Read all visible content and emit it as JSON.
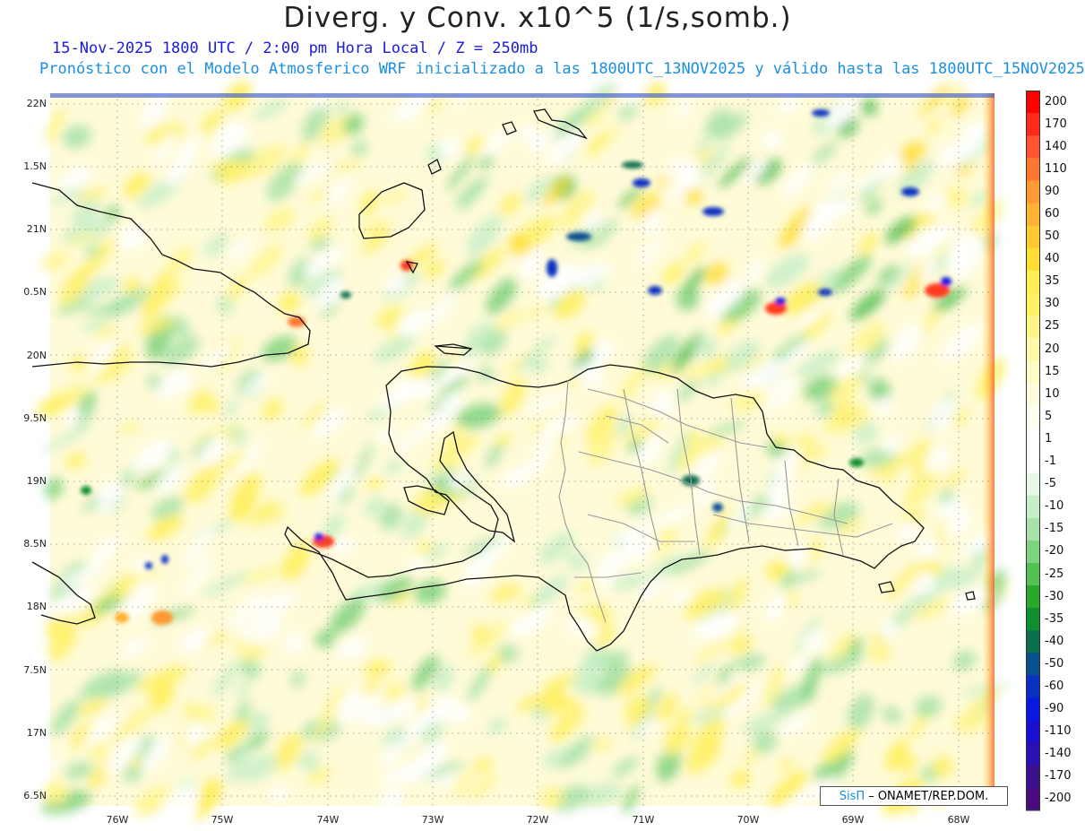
{
  "title": "Diverg. y Conv. x10^5 (1/s,somb.)",
  "subtitle1": "15-Nov-2025  1800 UTC / 2:00 pm Hora Local / Z = 250mb",
  "subtitle2": "Pronóstico con el Modelo Atmosferico WRF inicializado a las 1800UTC_13NOV2025 y válido hasta las  1800UTC_15NOV2025",
  "credit": {
    "brand": "SisΠ",
    "text": "– ONAMET/REP.DOM."
  },
  "lat_labels": [
    "22N",
    "1.5N",
    "21N",
    "0.5N",
    "20N",
    "9.5N",
    "19N",
    "8.5N",
    "18N",
    "7.5N",
    "17N",
    "6.5N"
  ],
  "lon_labels": [
    "76W",
    "75W",
    "74W",
    "73W",
    "72W",
    "71W",
    "70W",
    "69W",
    "68W"
  ],
  "colorbar": {
    "labels": [
      "200",
      "170",
      "140",
      "110",
      "90",
      "60",
      "50",
      "40",
      "35",
      "30",
      "25",
      "20",
      "15",
      "10",
      "5",
      "1",
      "-1",
      "-5",
      "-10",
      "-15",
      "-20",
      "-25",
      "-30",
      "-35",
      "-40",
      "-50",
      "-60",
      "-90",
      "-110",
      "-140",
      "-170",
      "-200"
    ],
    "colors": [
      "#ff0000",
      "#ff2a1a",
      "#ff5533",
      "#ff7733",
      "#ff9933",
      "#ffb233",
      "#ffc933",
      "#ffdd33",
      "#ffee55",
      "#fff066",
      "#fff488",
      "#fff8aa",
      "#fffbc4",
      "#fffde0",
      "#fffff0",
      "#ffffff",
      "#ffffff",
      "#e8f8e8",
      "#c8eec8",
      "#a8e2a8",
      "#7fd27f",
      "#55c055",
      "#2aa82a",
      "#0f8f2f",
      "#0a7050",
      "#0a5090",
      "#0a30c0",
      "#0a18e0",
      "#1a10d0",
      "#2a10b0",
      "#3a108f",
      "#4a0a80"
    ]
  }
}
